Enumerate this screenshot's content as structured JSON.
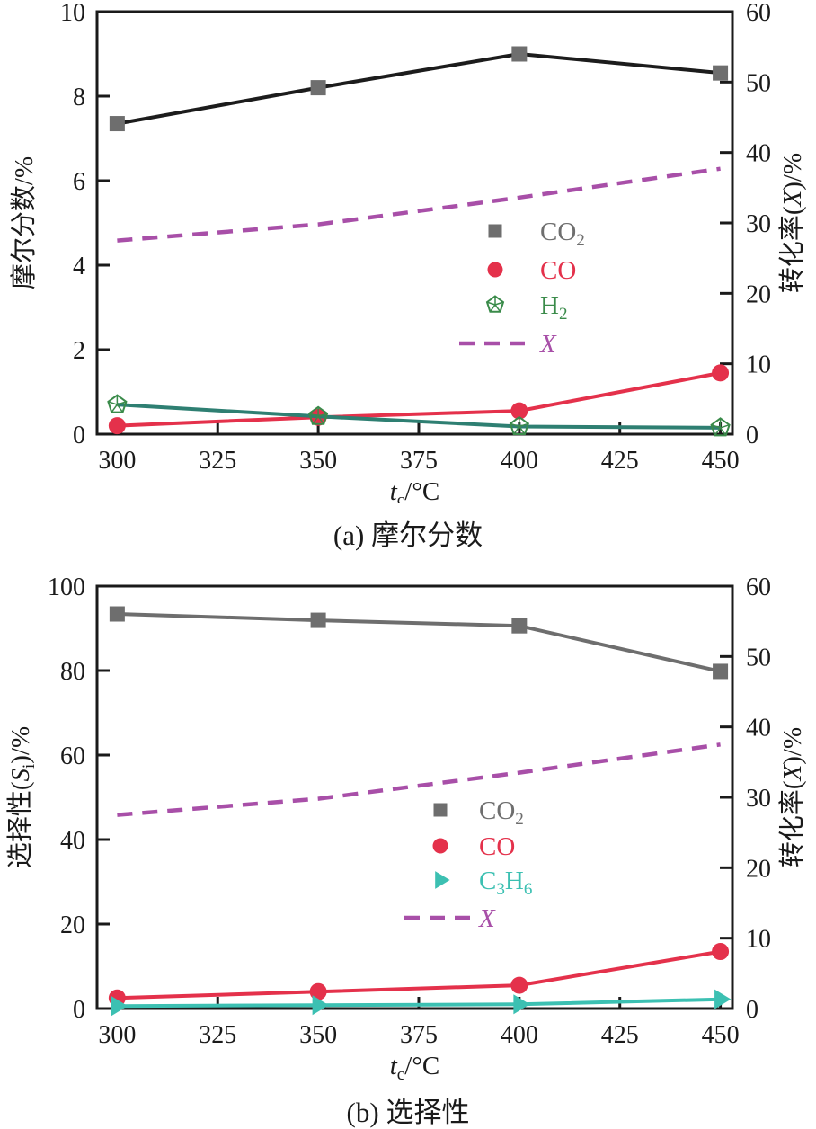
{
  "figure": {
    "caption_a": "(a) 摩尔分数",
    "caption_b": "(b) 选择性"
  },
  "colors": {
    "ink": "#1a1a1a",
    "co2_marker_gray": "#6e6e6e",
    "co2_line_black": "#1c1c1c",
    "co_red": "#e4314b",
    "h2_marker_green": "#3a8b4a",
    "h2_line_teal": "#2e7f72",
    "c3h6_teal": "#3cc0b2",
    "x_purple": "#a84fa8"
  },
  "chart_data": [
    {
      "type": "line",
      "caption": "(a) 摩尔分数",
      "xlabel": "*t*_{c}/°C",
      "grid": false,
      "legend_position": "center-right-inside",
      "x_axis": {
        "range": [
          295,
          453
        ],
        "ticks": [
          300,
          325,
          350,
          375,
          400,
          425,
          450
        ]
      },
      "left_axis": {
        "label": "摩尔分数/%",
        "range": [
          0,
          10
        ],
        "ticks": [
          0,
          2,
          4,
          6,
          8,
          10
        ]
      },
      "right_axis": {
        "label": "转化率(*X*)/%",
        "range": [
          0,
          60
        ],
        "ticks": [
          0,
          10,
          20,
          30,
          40,
          50,
          60
        ]
      },
      "x": [
        300,
        350,
        400,
        450
      ],
      "series": [
        {
          "name": "CO_{2}",
          "axis": "left",
          "marker": "square",
          "dashed": false,
          "marker_color": "#6e6e6e",
          "line_color": "#1c1c1c",
          "values": [
            7.35,
            8.2,
            9.0,
            8.55
          ]
        },
        {
          "name": "CO",
          "axis": "left",
          "marker": "circle",
          "dashed": false,
          "marker_color": "#e4314b",
          "line_color": "#e4314b",
          "values": [
            0.2,
            0.4,
            0.55,
            1.45
          ]
        },
        {
          "name": "H_{2}",
          "axis": "left",
          "marker": "pentagon",
          "dashed": false,
          "marker_color": "#3a8b4a",
          "line_color": "#2e7f72",
          "values": [
            0.7,
            0.42,
            0.18,
            0.15
          ]
        },
        {
          "name": "*X*",
          "axis": "right",
          "marker": "none",
          "dashed": true,
          "marker_color": "#a84fa8",
          "line_color": "#a84fa8",
          "values": [
            27.5,
            29.8,
            33.6,
            37.7
          ]
        }
      ]
    },
    {
      "type": "line",
      "caption": "(b) 选择性",
      "xlabel": "*t*_{c}/°C",
      "grid": false,
      "legend_position": "center-right-inside",
      "x_axis": {
        "range": [
          295,
          453
        ],
        "ticks": [
          300,
          325,
          350,
          375,
          400,
          425,
          450
        ]
      },
      "left_axis": {
        "label": "选择性(*S*_{i})/%",
        "range": [
          0,
          100
        ],
        "ticks": [
          0,
          20,
          40,
          60,
          80,
          100
        ]
      },
      "right_axis": {
        "label": "转化率(*X*)/%",
        "range": [
          0,
          60
        ],
        "ticks": [
          0,
          10,
          20,
          30,
          40,
          50,
          60
        ]
      },
      "x": [
        300,
        350,
        400,
        450
      ],
      "series": [
        {
          "name": "CO_{2}",
          "axis": "left",
          "marker": "square",
          "dashed": false,
          "marker_color": "#6e6e6e",
          "line_color": "#6e6e6e",
          "values": [
            93.4,
            91.9,
            90.6,
            79.8
          ]
        },
        {
          "name": "CO",
          "axis": "left",
          "marker": "circle",
          "dashed": false,
          "marker_color": "#e4314b",
          "line_color": "#e4314b",
          "values": [
            2.5,
            4.0,
            5.5,
            13.5
          ]
        },
        {
          "name": "C_{3}H_{6}",
          "axis": "left",
          "marker": "tri-right",
          "dashed": false,
          "marker_color": "#3cc0b2",
          "line_color": "#3cc0b2",
          "values": [
            0.6,
            0.8,
            1.0,
            2.2
          ]
        },
        {
          "name": "*X*",
          "axis": "right",
          "marker": "none",
          "dashed": true,
          "marker_color": "#a84fa8",
          "line_color": "#a84fa8",
          "values": [
            27.5,
            29.8,
            33.5,
            37.5
          ]
        }
      ]
    }
  ]
}
